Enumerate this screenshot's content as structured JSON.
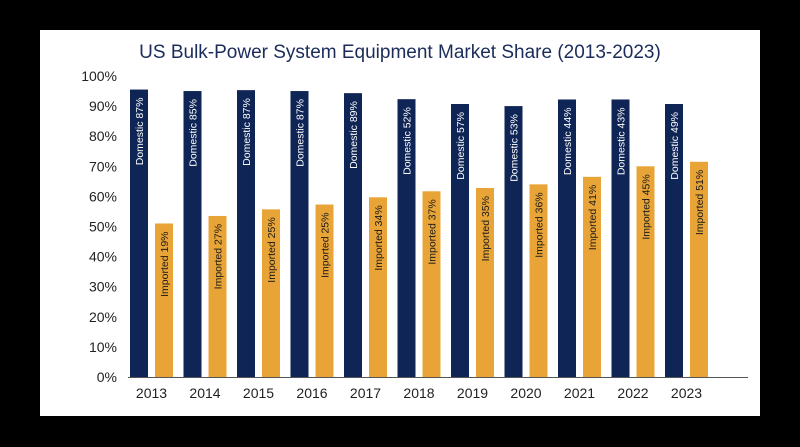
{
  "chart_data": {
    "type": "bar",
    "title": "US Bulk-Power System Equipment Market Share (2013-2023)",
    "xlabel": "",
    "ylabel": "",
    "ylim": [
      0,
      100
    ],
    "y_ticks": [
      "0%",
      "10%",
      "20%",
      "30%",
      "40%",
      "50%",
      "60%",
      "70%",
      "80%",
      "90%",
      "100%"
    ],
    "categories": [
      "2013",
      "2014",
      "2015",
      "2016",
      "2017",
      "2018",
      "2019",
      "2020",
      "2021",
      "2022",
      "2023"
    ],
    "grid": false,
    "legend": "none",
    "series": [
      {
        "name": "Domestic",
        "color": "#0f2556",
        "values": [
          95.5,
          95,
          95.3,
          95,
          94.3,
          92.3,
          90.7,
          90,
          92.2,
          92.2,
          90.7
        ],
        "labels": [
          "Domestic 87%",
          "Domestic 85%",
          "Domestic 87%",
          "Domestic 87%",
          "Domestic 89%",
          "Domestic 52%",
          "Domestic 57%",
          "Domestic 53%",
          "Domestic 44%",
          "Domestic 43%",
          "Domestic 49%"
        ]
      },
      {
        "name": "Imported",
        "color": "#e8a436",
        "values": [
          51,
          53.5,
          55.7,
          57.3,
          59.7,
          61.7,
          62.8,
          64,
          66.5,
          70,
          71.5
        ],
        "labels": [
          "Imported 19%",
          "Imported 27%",
          "Imported 25%",
          "Imported 25%",
          "Imported 34%",
          "Imported 37%",
          "Imported 35%",
          "Imported 36%",
          "Imported 41%",
          "Imported 45%",
          "Imported 51%"
        ]
      }
    ]
  }
}
